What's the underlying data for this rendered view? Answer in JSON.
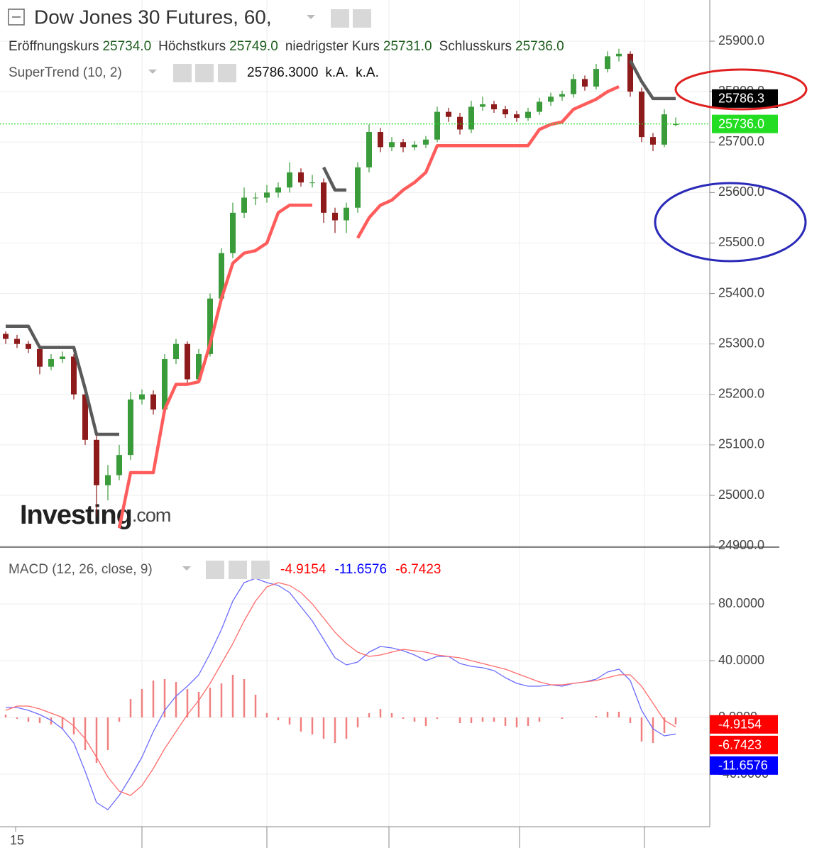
{
  "chart_data": [
    {
      "type": "candlestick",
      "title": "Dow Jones 30 Futures, 60,",
      "last_bar": {
        "labels": [
          "Eröffnungskurs",
          "Höchstkurs",
          "niedrigster Kurs",
          "Schlusskurs"
        ],
        "values": [
          25734,
          25749,
          25731,
          25736
        ],
        "value_labels": [
          "25734.0",
          "25749.0",
          "25731.0",
          "25736.0"
        ]
      },
      "indicator": {
        "name": "SuperTrend (10, 2)",
        "value": 25786.3,
        "value_label": "25786.3000",
        "extra": [
          "k.A.",
          "k.A."
        ]
      },
      "watermark": "Investing",
      "watermark_suffix": ".com",
      "x_label": "15",
      "up_color": "#3a9b3a",
      "down_color": "#8e1b1b",
      "open": [
        25320,
        25310,
        25300,
        25290,
        25255,
        25270,
        25275,
        25200,
        25110,
        25020,
        25040,
        25080,
        25190,
        25200,
        25170,
        25270,
        25300,
        25230,
        25280,
        25390,
        25480,
        25560,
        25590,
        25590,
        25600,
        25610,
        25640,
        25620,
        25620,
        25560,
        25545,
        25570,
        25650,
        25720,
        25690,
        25700,
        25690,
        25695,
        25705,
        25760,
        25750,
        25725,
        25770,
        25775,
        25765,
        25755,
        25748,
        25760,
        25780,
        25790,
        25795,
        25825,
        25810,
        25845,
        25870,
        25875,
        25800,
        25710,
        25695,
        25734
      ],
      "high": [
        25325,
        25318,
        25306,
        25296,
        25280,
        25285,
        25280,
        25208,
        25118,
        25060,
        25100,
        25205,
        25210,
        25208,
        25280,
        25310,
        25305,
        25290,
        25400,
        25490,
        25580,
        25610,
        25600,
        25615,
        25620,
        25660,
        25648,
        25635,
        25628,
        25570,
        25580,
        25660,
        25735,
        25728,
        25710,
        25706,
        25702,
        25712,
        25770,
        25768,
        25758,
        25782,
        25790,
        25782,
        25772,
        25762,
        25768,
        25788,
        25798,
        25802,
        25835,
        25832,
        25855,
        25880,
        25885,
        25880,
        25808,
        25718,
        25765,
        25749
      ],
      "low": [
        25300,
        25292,
        25282,
        25240,
        25248,
        25262,
        25190,
        25100,
        24960,
        24990,
        25030,
        25070,
        25180,
        25160,
        25165,
        25260,
        25220,
        25225,
        25275,
        25385,
        25470,
        25550,
        25575,
        25580,
        25590,
        25600,
        25612,
        25610,
        25540,
        25520,
        25520,
        25560,
        25640,
        25680,
        25682,
        25680,
        25684,
        25688,
        25700,
        25740,
        25715,
        25718,
        25762,
        25758,
        25748,
        25740,
        25742,
        25754,
        25772,
        25782,
        25788,
        25802,
        25804,
        25838,
        25860,
        25790,
        25700,
        25682,
        25690,
        25731
      ],
      "close": [
        25310,
        25300,
        25290,
        25255,
        25270,
        25275,
        25200,
        25110,
        25020,
        25040,
        25080,
        25190,
        25200,
        25170,
        25270,
        25300,
        25230,
        25280,
        25390,
        25480,
        25560,
        25590,
        25590,
        25600,
        25610,
        25640,
        25620,
        25620,
        25560,
        25545,
        25570,
        25650,
        25720,
        25690,
        25700,
        25690,
        25695,
        25705,
        25760,
        25750,
        25725,
        25770,
        25775,
        25765,
        25755,
        25748,
        25760,
        25780,
        25790,
        25795,
        25825,
        25810,
        25845,
        25870,
        25875,
        25800,
        25710,
        25695,
        25755,
        25736
      ],
      "series": [
        {
          "color": "#ff5c5c",
          "values": [
            null,
            null,
            null,
            null,
            null,
            null,
            null,
            null,
            null,
            null,
            24935,
            25045,
            25045,
            25045,
            25170,
            25220,
            25220,
            25225,
            25300,
            25390,
            25460,
            25480,
            25485,
            25500,
            25560,
            25575,
            25575,
            25575,
            null,
            null,
            null,
            25510,
            25550,
            25575,
            25585,
            25605,
            25620,
            25640,
            25693,
            25693,
            25693,
            25693,
            25693,
            25693,
            25693,
            25693,
            25693,
            25725,
            25735,
            25740,
            25765,
            25775,
            25785,
            25800,
            25810,
            null,
            null,
            null,
            null,
            null
          ]
        },
        {
          "color": "#5a5a5a",
          "values": [
            25335,
            25335,
            25335,
            25293,
            25293,
            25293,
            25293,
            25211,
            25121,
            25121,
            25121,
            null,
            null,
            null,
            null,
            null,
            null,
            null,
            null,
            null,
            null,
            null,
            null,
            null,
            null,
            null,
            null,
            null,
            25650,
            25605,
            25605,
            null,
            null,
            null,
            null,
            null,
            null,
            null,
            null,
            null,
            null,
            null,
            null,
            null,
            null,
            null,
            null,
            null,
            null,
            null,
            null,
            null,
            null,
            null,
            null,
            25862,
            25820,
            25786.3,
            25786.3,
            25786.3
          ]
        }
      ],
      "price_badges": [
        {
          "value": 25786.3,
          "label": "25786.3",
          "color": "#000000"
        },
        {
          "value": 25736,
          "label": "25736.0",
          "color": "#22dd22",
          "line": true
        }
      ],
      "ylim": [
        24898.8,
        25981.6
      ],
      "yticks": [
        {
          "value": 24900,
          "label": "24900.0"
        },
        {
          "value": 25000,
          "label": "25000.0"
        },
        {
          "value": 25100,
          "label": "25100.0"
        },
        {
          "value": 25200,
          "label": "25200.0"
        },
        {
          "value": 25300,
          "label": "25300.0"
        },
        {
          "value": 25400,
          "label": "25400.0"
        },
        {
          "value": 25500,
          "label": "25500.0"
        },
        {
          "value": 25600,
          "label": "25600.0"
        },
        {
          "value": 25700,
          "label": "25700.0"
        },
        {
          "value": 25800,
          "label": "25800.0"
        },
        {
          "value": 25900,
          "label": "25900.0"
        }
      ],
      "grid": true
    },
    {
      "type": "macd",
      "title": "MACD (12, 26, close, 9)",
      "legend_values": [
        -4.9154,
        -11.6576,
        -6.7423
      ],
      "legend_value_labels": [
        "-4.9154",
        "-11.6576",
        "-6.7423"
      ],
      "legend_colors": [
        "#ff0000",
        "#0000ff",
        "#ff0000"
      ],
      "series": [
        {
          "color": "#6b6bff",
          "values": [
            7,
            7,
            5,
            2,
            -2,
            -8,
            -18,
            -38,
            -60,
            -65,
            -55,
            -42,
            -28,
            -10,
            5,
            15,
            22,
            30,
            45,
            62,
            82,
            95,
            98,
            95,
            93,
            88,
            78,
            68,
            55,
            42,
            37,
            39,
            46,
            50,
            49,
            47,
            44,
            40,
            43,
            43,
            38,
            36,
            35,
            33,
            28,
            24,
            22,
            22,
            23,
            22,
            24,
            25,
            27,
            32,
            34,
            26,
            5,
            -8,
            -13,
            -11.6576
          ]
        },
        {
          "color": "#ff6b6b",
          "values": [
            5,
            8,
            8,
            6,
            3,
            0,
            -6,
            -15,
            -28,
            -42,
            -52,
            -55,
            -48,
            -36,
            -22,
            -10,
            2,
            12,
            24,
            38,
            52,
            68,
            82,
            92,
            95,
            93,
            88,
            80,
            70,
            60,
            52,
            46,
            43,
            44,
            46,
            48,
            47,
            46,
            44,
            43,
            42,
            40,
            38,
            36,
            34,
            31,
            28,
            25,
            23,
            23,
            24,
            25,
            26,
            28,
            30,
            30,
            22,
            10,
            -2,
            -6.7423
          ]
        }
      ],
      "histogram": {
        "color": "#f08080",
        "values": [
          2,
          -1,
          -3,
          -4,
          -5,
          -8,
          -12,
          -23,
          -32,
          -23,
          -3,
          13,
          20,
          26,
          27,
          25,
          20,
          18,
          21,
          24,
          30,
          27,
          16,
          3,
          -2,
          -5,
          -10,
          -12,
          -15,
          -18,
          -15,
          -7,
          3,
          6,
          3,
          -1,
          -3,
          -6,
          -1,
          0,
          -4,
          -4,
          -3,
          -3,
          -6,
          -7,
          -6,
          -3,
          0,
          -1,
          0,
          0,
          1,
          4,
          4,
          -4,
          -17,
          -18,
          -11,
          -4.9154
        ]
      },
      "badges": [
        {
          "value": -4.9154,
          "label": "-4.9154",
          "color": "#ff0000"
        },
        {
          "value": -6.7423,
          "label": "-6.7423",
          "color": "#ff0000"
        },
        {
          "value": -11.6576,
          "label": "-11.6576",
          "color": "#0000ff"
        }
      ],
      "ylim": [
        -77,
        118
      ],
      "yticks": [
        {
          "value": -40,
          "label": "-40.0000"
        },
        {
          "value": 0,
          "label": "0.0000"
        },
        {
          "value": 40,
          "label": "40.0000"
        },
        {
          "value": 80,
          "label": "80.0000"
        }
      ],
      "grid": true
    }
  ]
}
